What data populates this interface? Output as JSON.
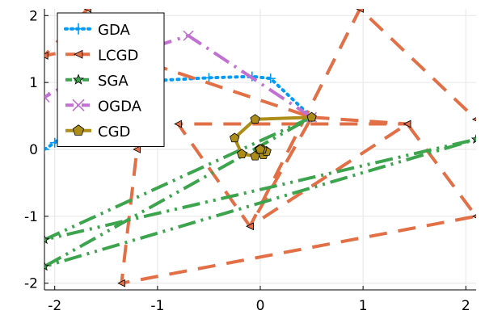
{
  "chart_data": {
    "type": "line",
    "title": "",
    "xlabel": "",
    "ylabel": "",
    "xlim": [
      -2.1,
      2.1
    ],
    "ylim": [
      -2.1,
      2.1
    ],
    "xticks": [
      -2,
      -1,
      0,
      1,
      2
    ],
    "yticks": [
      -2,
      -1,
      0,
      1,
      2
    ],
    "xtick_labels": [
      "-2",
      "-1",
      "0",
      "1",
      "2"
    ],
    "ytick_labels": [
      "-2",
      "-1",
      "0",
      "1",
      "2"
    ],
    "grid": true,
    "legend_position": "top-left",
    "series": [
      {
        "name": "GDA",
        "color": "#009AFA",
        "dash": "dot",
        "marker": "plus",
        "points": [
          [
            -2.1,
            0.0
          ],
          [
            -2.0,
            0.1
          ],
          [
            -1.55,
            0.75
          ],
          [
            -1.0,
            1.03
          ],
          [
            -0.5,
            1.07
          ],
          [
            -0.08,
            1.09
          ],
          [
            0.1,
            1.06
          ],
          [
            0.5,
            0.48
          ]
        ]
      },
      {
        "name": "LCGD",
        "color": "#E26F46",
        "dash": "dash",
        "marker": "triangle-left",
        "points": [
          [
            0.5,
            0.48
          ],
          [
            1.43,
            0.38
          ],
          [
            -0.8,
            0.38
          ],
          [
            -0.1,
            -1.15
          ],
          [
            1.43,
            0.38
          ],
          [
            2.1,
            -1.0
          ],
          [
            -1.35,
            -2.0
          ],
          [
            -1.2,
            0.0
          ],
          [
            -1.68,
            2.1
          ],
          [
            -2.1,
            1.4
          ],
          [
            -1.6,
            1.55
          ],
          [
            0.5,
            0.48
          ],
          [
            -0.1,
            -1.15
          ],
          [
            0.97,
            2.1
          ],
          [
            2.1,
            0.45
          ]
        ]
      },
      {
        "name": "SGA",
        "color": "#3DA44E",
        "dash": "dashdotdot",
        "marker": "star",
        "points": [
          [
            0.5,
            0.48
          ],
          [
            -2.1,
            -1.35
          ],
          [
            2.1,
            0.15
          ],
          [
            -2.1,
            -1.75
          ],
          [
            0.5,
            0.48
          ]
        ]
      },
      {
        "name": "OGDA",
        "color": "#C271D2",
        "dash": "dashdot",
        "marker": "x",
        "points": [
          [
            0.5,
            0.48
          ],
          [
            -0.7,
            1.7
          ],
          [
            -1.5,
            1.3
          ],
          [
            -2.1,
            0.78
          ]
        ]
      },
      {
        "name": "CGD",
        "color": "#AC8D18",
        "dash": "solid",
        "marker": "pentagon",
        "points": [
          [
            0.5,
            0.48
          ],
          [
            -0.05,
            0.45
          ],
          [
            -0.25,
            0.17
          ],
          [
            -0.18,
            -0.07
          ],
          [
            -0.05,
            -0.1
          ],
          [
            0.03,
            -0.08
          ],
          [
            0.06,
            -0.03
          ],
          [
            0.02,
            -0.0
          ],
          [
            -0.01,
            0.0
          ],
          [
            0.0,
            0.0
          ]
        ]
      }
    ]
  }
}
